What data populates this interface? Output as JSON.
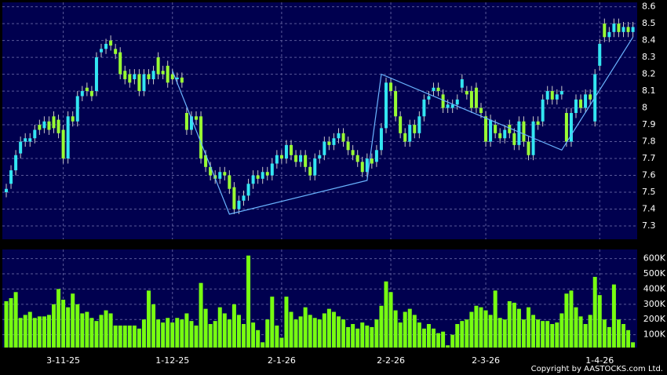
{
  "chart_data": {
    "type": "candlestick",
    "categories": [
      null,
      null,
      null,
      null,
      null,
      null,
      null,
      null,
      null,
      null,
      null,
      null,
      "3-11-25",
      null,
      null,
      null,
      null,
      null,
      null,
      null,
      null,
      null,
      null,
      null,
      null,
      null,
      null,
      null,
      null,
      null,
      null,
      null,
      null,
      null,
      null,
      "1-12-25",
      null,
      null,
      null,
      null,
      null,
      null,
      null,
      null,
      null,
      null,
      null,
      null,
      null,
      null,
      null,
      null,
      null,
      null,
      null,
      null,
      null,
      null,
      "2-1-26",
      null,
      null,
      null,
      null,
      null,
      null,
      null,
      null,
      null,
      null,
      null,
      null,
      null,
      null,
      null,
      null,
      null,
      null,
      null,
      null,
      null,
      null,
      "2-2-26",
      null,
      null,
      null,
      null,
      null,
      null,
      null,
      null,
      null,
      null,
      null,
      null,
      null,
      null,
      null,
      null,
      null,
      null,
      null,
      "2-3-26",
      null,
      null,
      null,
      null,
      null,
      null,
      null,
      null,
      null,
      null,
      null,
      null,
      null,
      null,
      null,
      null,
      null,
      null,
      null,
      null,
      null,
      null,
      null,
      "1-4-26",
      null,
      null,
      null,
      null,
      null,
      null,
      null
    ],
    "open": [
      7.5,
      7.55,
      7.63,
      7.73,
      7.8,
      7.8,
      7.82,
      7.9,
      7.88,
      7.92,
      7.95,
      7.93,
      7.87,
      7.7,
      7.95,
      7.92,
      8.07,
      8.12,
      8.1,
      8.1,
      8.33,
      8.35,
      8.4,
      8.35,
      8.33,
      8.22,
      8.2,
      8.17,
      8.2,
      8.1,
      8.2,
      8.17,
      8.3,
      8.22,
      8.25,
      8.2,
      8.17,
      8.18,
      7.97,
      7.87,
      7.95,
      7.95,
      7.72,
      7.65,
      7.6,
      7.58,
      7.62,
      7.6,
      7.53,
      7.4,
      7.45,
      7.48,
      7.55,
      7.6,
      7.58,
      7.62,
      7.6,
      7.67,
      7.72,
      7.7,
      7.78,
      7.72,
      7.68,
      7.72,
      7.65,
      7.6,
      7.7,
      7.72,
      7.8,
      7.78,
      7.82,
      7.85,
      7.8,
      7.75,
      7.72,
      7.68,
      7.62,
      7.7,
      7.68,
      7.75,
      7.88,
      8.15,
      8.1,
      7.95,
      7.85,
      7.8,
      7.9,
      7.85,
      7.95,
      8.05,
      8.1,
      8.12,
      8.08,
      8.0,
      8.0,
      8.02,
      8.12,
      8.1,
      8.1,
      8.12,
      8.0,
      7.95,
      7.8,
      7.9,
      7.85,
      7.82,
      7.9,
      7.85,
      7.78,
      7.92,
      7.8,
      7.72,
      7.92,
      7.92,
      8.05,
      8.1,
      8.05,
      8.08,
      7.97,
      7.8,
      7.97,
      8.05,
      8.0,
      8.08,
      7.92,
      8.25,
      8.5,
      8.42,
      8.45,
      8.5,
      8.45,
      8.48,
      8.45
    ],
    "high": [
      7.55,
      7.66,
      7.75,
      7.83,
      7.85,
      7.85,
      7.9,
      7.93,
      7.95,
      7.95,
      7.98,
      7.96,
      7.9,
      7.98,
      7.98,
      8.1,
      8.13,
      8.15,
      8.13,
      8.33,
      8.38,
      8.41,
      8.43,
      8.38,
      8.36,
      8.25,
      8.23,
      8.23,
      8.23,
      8.23,
      8.23,
      8.25,
      8.33,
      8.25,
      8.28,
      8.23,
      8.21,
      8.21,
      8.0,
      7.98,
      7.98,
      7.98,
      7.75,
      7.68,
      7.63,
      7.65,
      7.65,
      7.63,
      7.56,
      7.48,
      7.51,
      7.58,
      7.63,
      7.63,
      7.65,
      7.65,
      7.7,
      7.75,
      7.75,
      7.81,
      7.81,
      7.75,
      7.75,
      7.75,
      7.68,
      7.73,
      7.75,
      7.83,
      7.83,
      7.85,
      7.88,
      7.88,
      7.83,
      7.78,
      7.75,
      7.71,
      7.73,
      7.73,
      7.78,
      7.91,
      8.18,
      8.18,
      8.13,
      7.98,
      7.88,
      7.93,
      7.93,
      7.98,
      8.08,
      8.1,
      8.15,
      8.15,
      8.11,
      8.05,
      8.05,
      8.08,
      8.2,
      8.13,
      8.13,
      8.15,
      8.03,
      7.98,
      7.96,
      7.93,
      7.88,
      7.9,
      7.93,
      7.88,
      7.95,
      7.95,
      7.83,
      7.95,
      7.95,
      8.08,
      8.13,
      8.13,
      8.11,
      8.13,
      8.0,
      8.0,
      8.08,
      8.08,
      8.11,
      8.11,
      8.23,
      8.41,
      8.53,
      8.48,
      8.53,
      8.53,
      8.51,
      8.51,
      8.51
    ],
    "low": [
      7.47,
      7.52,
      7.6,
      7.7,
      7.77,
      7.77,
      7.79,
      7.84,
      7.85,
      7.84,
      7.85,
      7.82,
      7.67,
      7.67,
      7.89,
      7.89,
      8.04,
      8.07,
      8.04,
      8.07,
      8.3,
      8.32,
      8.34,
      8.29,
      8.17,
      8.14,
      8.12,
      8.14,
      8.07,
      8.07,
      8.14,
      8.14,
      8.17,
      8.17,
      8.12,
      8.14,
      8.14,
      8.12,
      7.84,
      7.84,
      7.9,
      7.67,
      7.62,
      7.57,
      7.55,
      7.55,
      7.57,
      7.49,
      7.37,
      7.37,
      7.42,
      7.45,
      7.52,
      7.55,
      7.55,
      7.57,
      7.57,
      7.64,
      7.67,
      7.67,
      7.69,
      7.65,
      7.65,
      7.62,
      7.57,
      7.57,
      7.67,
      7.69,
      7.75,
      7.75,
      7.79,
      7.77,
      7.72,
      7.69,
      7.65,
      7.59,
      7.59,
      7.64,
      7.65,
      7.72,
      7.85,
      8.07,
      7.92,
      7.82,
      7.77,
      7.77,
      7.82,
      7.82,
      7.92,
      8.02,
      8.07,
      8.07,
      7.97,
      7.97,
      7.97,
      7.99,
      8.09,
      8.05,
      7.97,
      7.97,
      7.94,
      7.77,
      7.77,
      7.82,
      7.79,
      7.79,
      7.82,
      7.75,
      7.75,
      7.77,
      7.69,
      7.69,
      7.87,
      7.89,
      8.02,
      8.02,
      8.02,
      8.05,
      7.77,
      7.77,
      7.94,
      7.97,
      7.97,
      8.02,
      7.89,
      8.22,
      8.39,
      8.39,
      8.42,
      8.42,
      8.42,
      8.42,
      8.42
    ],
    "close": [
      7.52,
      7.63,
      7.72,
      7.8,
      7.82,
      7.82,
      7.87,
      7.87,
      7.92,
      7.87,
      7.88,
      7.85,
      7.7,
      7.95,
      7.92,
      8.07,
      8.1,
      8.1,
      8.07,
      8.3,
      8.35,
      8.38,
      8.37,
      8.32,
      8.2,
      8.17,
      8.15,
      8.2,
      8.1,
      8.2,
      8.17,
      8.22,
      8.2,
      8.2,
      8.15,
      8.17,
      8.18,
      8.15,
      7.87,
      7.95,
      7.93,
      7.7,
      7.65,
      7.6,
      7.58,
      7.62,
      7.6,
      7.52,
      7.4,
      7.45,
      7.48,
      7.55,
      7.6,
      7.58,
      7.62,
      7.6,
      7.67,
      7.72,
      7.7,
      7.78,
      7.72,
      7.68,
      7.72,
      7.65,
      7.6,
      7.7,
      7.72,
      7.8,
      7.78,
      7.82,
      7.85,
      7.8,
      7.75,
      7.72,
      7.68,
      7.62,
      7.7,
      7.67,
      7.75,
      7.88,
      8.15,
      8.1,
      7.95,
      7.85,
      7.8,
      7.9,
      7.85,
      7.95,
      8.05,
      8.07,
      8.12,
      8.1,
      8.0,
      8.02,
      8.02,
      8.05,
      8.17,
      8.08,
      8.0,
      8.0,
      7.97,
      7.8,
      7.93,
      7.85,
      7.82,
      7.87,
      7.85,
      7.78,
      7.92,
      7.8,
      7.72,
      7.92,
      7.9,
      8.05,
      8.1,
      8.05,
      8.08,
      8.1,
      7.8,
      7.97,
      8.05,
      8.0,
      8.08,
      8.05,
      8.2,
      8.38,
      8.42,
      8.45,
      8.5,
      8.45,
      8.48,
      8.45,
      8.48
    ],
    "up_color": "#33e6f2",
    "down_color": "#99ff33",
    "wick_color": "#c8c8c8",
    "ylim": [
      7.235,
      8.64
    ],
    "yticks": [
      7.3,
      7.4,
      7.5,
      7.6,
      7.7,
      7.8,
      7.9,
      8,
      8.1,
      8.2,
      8.3,
      8.4,
      8.5,
      8.6
    ],
    "grid": true,
    "trendline": {
      "x": [
        35,
        47,
        76,
        79,
        117,
        132
      ],
      "values": [
        8.22,
        7.37,
        7.57,
        8.2,
        7.75,
        8.42
      ],
      "color": "#6ab4ff"
    },
    "volume": {
      "values": [
        320000,
        340000,
        380000,
        210000,
        230000,
        250000,
        210000,
        220000,
        220000,
        230000,
        300000,
        400000,
        330000,
        280000,
        370000,
        300000,
        240000,
        250000,
        210000,
        190000,
        230000,
        260000,
        240000,
        160000,
        160000,
        160000,
        160000,
        160000,
        140000,
        200000,
        390000,
        300000,
        200000,
        180000,
        210000,
        180000,
        210000,
        200000,
        240000,
        190000,
        160000,
        440000,
        270000,
        170000,
        190000,
        280000,
        240000,
        200000,
        300000,
        230000,
        170000,
        620000,
        180000,
        130000,
        50000,
        200000,
        350000,
        160000,
        80000,
        350000,
        250000,
        200000,
        220000,
        280000,
        230000,
        210000,
        200000,
        240000,
        270000,
        250000,
        220000,
        200000,
        150000,
        170000,
        140000,
        180000,
        160000,
        150000,
        200000,
        290000,
        450000,
        380000,
        260000,
        180000,
        250000,
        270000,
        230000,
        180000,
        140000,
        170000,
        140000,
        110000,
        120000,
        30000,
        100000,
        170000,
        190000,
        200000,
        250000,
        290000,
        280000,
        260000,
        230000,
        390000,
        210000,
        200000,
        320000,
        310000,
        270000,
        200000,
        280000,
        230000,
        200000,
        190000,
        190000,
        170000,
        180000,
        240000,
        370000,
        390000,
        280000,
        220000,
        170000,
        230000,
        480000,
        360000,
        200000,
        150000,
        430000,
        200000,
        170000,
        130000,
        50000
      ],
      "color": "#77ff11",
      "ylim": [
        0,
        660000
      ],
      "yticks": [
        {
          "value": 100000,
          "label": "100K"
        },
        {
          "value": 200000,
          "label": "200K"
        },
        {
          "value": 300000,
          "label": "300K"
        },
        {
          "value": 400000,
          "label": "400K"
        },
        {
          "value": 500000,
          "label": "500K"
        },
        {
          "value": 600000,
          "label": "600K"
        }
      ]
    },
    "copyright": "Copyright by AASTOCKS.com Ltd."
  }
}
